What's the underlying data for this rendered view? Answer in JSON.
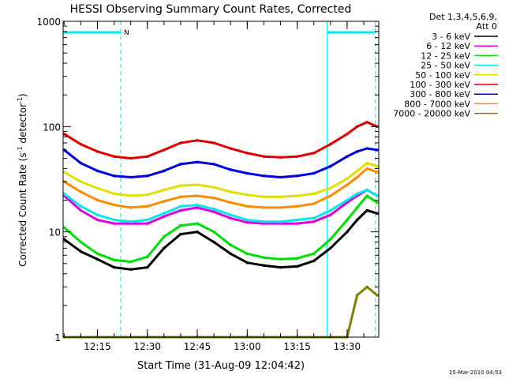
{
  "chart_data": {
    "type": "line",
    "title": "HESSI Observing Summary Count Rates, Corrected",
    "xlabel": "Start Time (31-Aug-09 12:04:42)",
    "ylabel_prefix": "Corrected Count Rate (s",
    "ylabel_exp": "-1",
    "ylabel_mid": " detector",
    "ylabel_suffix": ")",
    "y_scale": "log",
    "ylim": [
      1,
      1000
    ],
    "xlim": [
      "12:04:42",
      "13:39:30"
    ],
    "x_ticks": [
      "12:15",
      "12:30",
      "12:45",
      "13:00",
      "13:15",
      "13:30"
    ],
    "y_tick_labels": [
      "1",
      "10",
      "100",
      "1000"
    ],
    "legend_header": [
      "Det 1,3,4,5,6,9,",
      "Att 0"
    ],
    "legend_position": "right",
    "timestamp": "15-Mar-2010 04:53",
    "night_marker": "N",
    "night_intervals": [
      [
        "12:04:42",
        "12:22:00"
      ],
      [
        "13:24:00",
        "13:38:30"
      ]
    ],
    "times": [
      "12:05",
      "12:10",
      "12:15",
      "12:20",
      "12:25",
      "12:30",
      "12:35",
      "12:40",
      "12:45",
      "12:50",
      "12:55",
      "13:00",
      "13:05",
      "13:10",
      "13:15",
      "13:20",
      "13:25",
      "13:30",
      "13:33",
      "13:36",
      "13:39"
    ],
    "series": [
      {
        "name": "3 - 6 keV",
        "color": "#000000",
        "values": [
          8.5,
          6.5,
          5.5,
          4.6,
          4.4,
          4.6,
          7,
          9.5,
          10,
          8,
          6.2,
          5.1,
          4.8,
          4.6,
          4.7,
          5.3,
          7,
          10,
          13,
          16,
          15
        ]
      },
      {
        "name": "6 - 12 keV",
        "color": "#e000e0",
        "values": [
          22,
          16,
          13,
          12,
          12,
          12,
          14,
          16,
          17,
          15.5,
          13.5,
          12.3,
          12,
          12,
          12,
          12.5,
          14.5,
          19,
          22,
          25,
          22
        ]
      },
      {
        "name": "12 - 25 keV",
        "color": "#00e000",
        "values": [
          11,
          8,
          6.2,
          5.4,
          5.2,
          5.8,
          9,
          11.5,
          12,
          10,
          7.5,
          6.2,
          5.7,
          5.5,
          5.6,
          6.2,
          8.5,
          13,
          17,
          22,
          19
        ]
      },
      {
        "name": "25 - 50 keV",
        "color": "#00e8e8",
        "values": [
          23,
          17.5,
          14.5,
          13,
          12.5,
          13,
          15,
          17.5,
          18,
          16.5,
          14.5,
          13,
          12.5,
          12.5,
          13,
          13.5,
          16,
          20,
          23,
          25,
          22
        ]
      },
      {
        "name": "50 - 100 keV",
        "color": "#e0e000",
        "values": [
          37,
          30,
          26,
          23,
          22,
          22.5,
          25,
          27.5,
          28,
          26.5,
          24,
          22.5,
          21.5,
          21.5,
          22,
          23,
          26,
          32,
          38,
          45,
          42
        ]
      },
      {
        "name": "100 - 300 keV",
        "color": "#e00000",
        "values": [
          85,
          68,
          58,
          52,
          50,
          52,
          60,
          70,
          74,
          70,
          62,
          56,
          52,
          51,
          52,
          56,
          68,
          85,
          100,
          110,
          100
        ]
      },
      {
        "name": "300 - 800 keV",
        "color": "#0000e0",
        "values": [
          60,
          45,
          38,
          34,
          33,
          34,
          38,
          44,
          46,
          44,
          39,
          36,
          34,
          33,
          34,
          36,
          42,
          52,
          58,
          62,
          60
        ]
      },
      {
        "name": "800 - 7000 keV",
        "color": "#ff8c00",
        "values": [
          30,
          24,
          20,
          18,
          17,
          17.5,
          19.5,
          21.5,
          22,
          21,
          19,
          17.5,
          17,
          17,
          17.5,
          18.5,
          22,
          28,
          33,
          40,
          37
        ]
      },
      {
        "name": "7000 - 20000 keV",
        "color": "#808000",
        "values": [
          1,
          1,
          1,
          1,
          1,
          1,
          1,
          1,
          1,
          1,
          1,
          1,
          1,
          1,
          1,
          1,
          1,
          1,
          2.5,
          3,
          2.5
        ]
      }
    ]
  }
}
